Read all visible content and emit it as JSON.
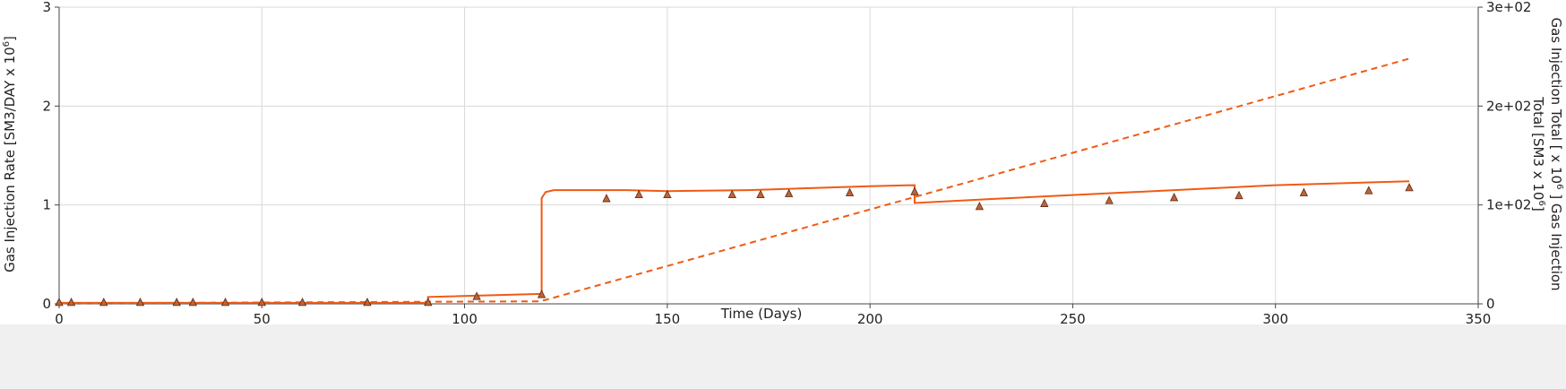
{
  "chart_data": {
    "type": "line",
    "xlabel": "Time (Days)",
    "ylabel": {
      "text": "Gas Injection Rate [SM3/DAY x 10",
      "sup": "6",
      "tail": "]"
    },
    "y2label_line1": {
      "text": "Gas Injection Total [ x 10",
      "sup": "6",
      "tail": " ] Gas Injection"
    },
    "y2label_line2": {
      "text": "Total [SM3 x 10",
      "sup": "6",
      "tail": "]"
    },
    "xlim": [
      0,
      350
    ],
    "ylim": [
      0,
      3
    ],
    "y2lim": [
      0,
      300
    ],
    "xticks": [
      0,
      50,
      100,
      150,
      200,
      250,
      300,
      350
    ],
    "yticks": [
      0,
      1,
      2,
      3
    ],
    "y2ticks": [
      {
        "value": 0,
        "label": "0"
      },
      {
        "value": 100,
        "label": "1e+02"
      },
      {
        "value": 200,
        "label": "2e+02"
      },
      {
        "value": 300,
        "label": "3e+02"
      }
    ],
    "grid": true,
    "color": "#f05a14",
    "marker_fill": "#c0623a",
    "series": [
      {
        "style": "solid",
        "axis": "left",
        "step": true,
        "points": [
          [
            0,
            0.01
          ],
          [
            91,
            0.01
          ],
          [
            91,
            0.07
          ],
          [
            118,
            0.1
          ],
          [
            119,
            0.1
          ],
          [
            119,
            1.07
          ],
          [
            120,
            1.13
          ],
          [
            122,
            1.15
          ],
          [
            140,
            1.15
          ],
          [
            150,
            1.14
          ],
          [
            170,
            1.15
          ],
          [
            200,
            1.19
          ],
          [
            211,
            1.2
          ],
          [
            211,
            1.02
          ],
          [
            230,
            1.06
          ],
          [
            260,
            1.12
          ],
          [
            300,
            1.2
          ],
          [
            333,
            1.24
          ]
        ]
      },
      {
        "style": "dashed",
        "axis": "right",
        "points": [
          [
            0,
            0.5
          ],
          [
            118,
            2.5
          ],
          [
            120,
            4
          ],
          [
            211,
            108
          ],
          [
            333,
            248
          ]
        ]
      },
      {
        "style": "markers",
        "axis": "left",
        "points": [
          [
            0,
            0.01
          ],
          [
            3,
            0.01
          ],
          [
            11,
            0.01
          ],
          [
            20,
            0.01
          ],
          [
            29,
            0.01
          ],
          [
            33,
            0.01
          ],
          [
            41,
            0.01
          ],
          [
            50,
            0.01
          ],
          [
            60,
            0.01
          ],
          [
            76,
            0.01
          ],
          [
            91,
            0.01
          ],
          [
            103,
            0.07
          ],
          [
            119,
            0.09
          ],
          [
            135,
            1.06
          ],
          [
            143,
            1.1
          ],
          [
            150,
            1.1
          ],
          [
            166,
            1.1
          ],
          [
            173,
            1.1
          ],
          [
            180,
            1.11
          ],
          [
            195,
            1.12
          ],
          [
            211,
            1.13
          ],
          [
            227,
            0.98
          ],
          [
            243,
            1.01
          ],
          [
            259,
            1.04
          ],
          [
            275,
            1.07
          ],
          [
            291,
            1.09
          ],
          [
            307,
            1.12
          ],
          [
            323,
            1.14
          ],
          [
            333,
            1.17
          ]
        ]
      }
    ]
  }
}
